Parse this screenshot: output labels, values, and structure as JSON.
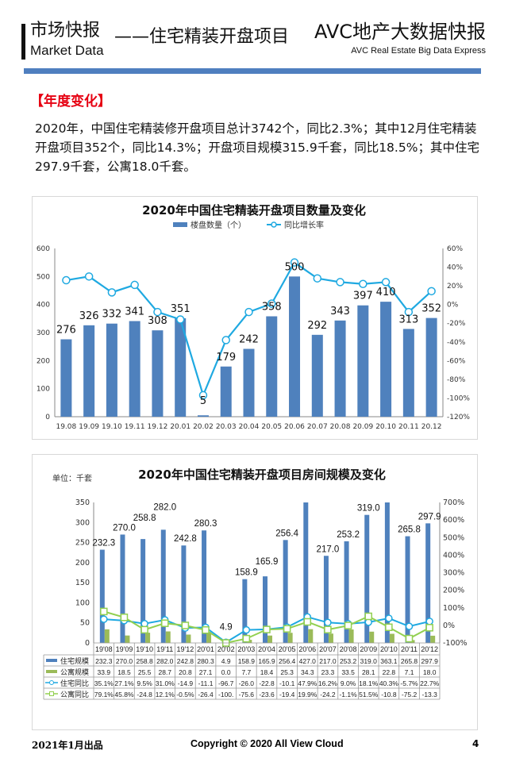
{
  "header": {
    "title_cn": "市场快报",
    "title_en": "Market Data",
    "subtitle": "——住宅精装开盘项目",
    "brand_cn": "AVC地产大数据快报",
    "brand_en": "AVC  Real Estate Big Data Express"
  },
  "section": {
    "title": "【年度变化】",
    "paragraph": "2020年，中国住宅精装修开盘项目总计3742个，同比2.3%；其中12月住宅精装开盘项目352个，同比14.3%；开盘项目规模315.9千套，同比18.5%；其中住宅297.9千套，公寓18.0千套。"
  },
  "colors": {
    "bar_blue": "#4f81bd",
    "bar_green": "#9bbb59",
    "line_cyan": "#1fa9e1",
    "line_green": "#92d050",
    "header_line": "#4f7fbf",
    "section_red": "#e60012"
  },
  "chart_data": [
    {
      "type": "bar+line",
      "title": "2020年中国住宅精装开盘项目数量及变化",
      "categories": [
        "19.08",
        "19.09",
        "19.10",
        "19.11",
        "19.12",
        "20.01",
        "20.02",
        "20.03",
        "20.04",
        "20.05",
        "20.06",
        "20.07",
        "20.08",
        "20.09",
        "20.10",
        "20.11",
        "20.12"
      ],
      "series": [
        {
          "name": "楼盘数量（个）",
          "type": "bar",
          "values": [
            276,
            326,
            332,
            341,
            308,
            351,
            5,
            179,
            242,
            358,
            500,
            292,
            343,
            397,
            410,
            313,
            352
          ]
        },
        {
          "name": "同比增长率",
          "type": "line",
          "axis": "right",
          "values": [
            26,
            30,
            13,
            21,
            -8,
            -16,
            -97,
            -38,
            -8,
            1,
            45,
            28,
            24,
            22,
            24,
            -8,
            14.3
          ]
        }
      ],
      "ylim": [
        0,
        600
      ],
      "yticks": [
        "0",
        "100",
        "200",
        "300",
        "400",
        "500",
        "600"
      ],
      "y2lim": [
        -120,
        60
      ],
      "y2ticks": [
        "-120%",
        "-100%",
        "-80%",
        "-60%",
        "-40%",
        "-20%",
        "0%",
        "20%",
        "40%",
        "60%"
      ],
      "legend": "top"
    },
    {
      "type": "bar+line+table",
      "title": "2020年中国住宅精装开盘项目房间规模及变化",
      "unit": "单位：千套",
      "categories": [
        "19'08",
        "19'09",
        "19'10",
        "19'11",
        "19'12",
        "20'01",
        "20'02",
        "20'03",
        "20'04",
        "20'05",
        "20'06",
        "20'07",
        "20'08",
        "20'09",
        "20'10",
        "20'11",
        "20'12"
      ],
      "series": [
        {
          "name": "住宅规模",
          "type": "bar",
          "values": [
            232.3,
            270.0,
            258.8,
            282.0,
            242.8,
            280.3,
            4.9,
            158.9,
            165.9,
            256.4,
            427.0,
            217.0,
            253.2,
            319.0,
            363.1,
            265.8,
            297.9
          ],
          "labels": [
            "232.3",
            "270.0",
            "258.8",
            "282.0",
            "242.8",
            "280.3",
            "4.9",
            "158.9",
            "165.9",
            "256.4",
            "427.0",
            "217.0",
            "253.2",
            "319.0",
            "363.1",
            "265.8",
            "297.9"
          ]
        },
        {
          "name": "公寓规模",
          "type": "bar",
          "values": [
            33.9,
            18.5,
            25.5,
            28.7,
            20.8,
            27.1,
            0.0,
            7.7,
            18.4,
            25.3,
            34.3,
            23.3,
            33.5,
            28.1,
            22.8,
            7.1,
            18.0
          ],
          "labels": [
            "33.9",
            "18.5",
            "25.5",
            "28.7",
            "20.8",
            "27.1",
            "0.0",
            "7.7",
            "18.4",
            "25.3",
            "34.3",
            "23.3",
            "33.5",
            "28.1",
            "22.8",
            "7.1",
            "18.0"
          ]
        },
        {
          "name": "住宅同比",
          "type": "line",
          "axis": "right",
          "values": [
            35.1,
            27.1,
            9.5,
            31.0,
            -14.9,
            -11.1,
            -96.7,
            -26.0,
            -22.8,
            -10.1,
            47.9,
            16.2,
            9.0,
            18.1,
            40.3,
            -5.7,
            22.7
          ],
          "labels": [
            "35.1%",
            "27.1%",
            "9.5%",
            "31.0%",
            "-14.9",
            "-11.1",
            "-96.7",
            "-26.0",
            "-22.8",
            "-10.1",
            "47.9%",
            "16.2%",
            "9.0%",
            "18.1%",
            "40.3%",
            "-5.7%",
            "22.7%"
          ]
        },
        {
          "name": "公寓同比",
          "type": "line",
          "axis": "right",
          "values": [
            79.1,
            45.8,
            -24.8,
            12.1,
            -0.5,
            -26.4,
            -100,
            -75.6,
            -23.6,
            -19.4,
            19.9,
            -24.2,
            -1.1,
            51.5,
            -10.8,
            -75.2,
            -13.3
          ],
          "labels": [
            "79.1%",
            "45.8%",
            "-24.8",
            "12.1%",
            "-0.5%",
            "-26.4",
            "-100.",
            "-75.6",
            "-23.6",
            "-19.4",
            "19.9%",
            "-24.2",
            "-1.1%",
            "51.5%",
            "-10.8",
            "-75.2",
            "-13.3"
          ]
        }
      ],
      "ylim": [
        0,
        350
      ],
      "yticks": [
        "0",
        "50",
        "100",
        "150",
        "200",
        "250",
        "300",
        "350"
      ],
      "y2lim": [
        -100,
        700
      ],
      "y2ticks": [
        "-100%",
        "0%",
        "100%",
        "200%",
        "300%",
        "400%",
        "500%",
        "600%",
        "700%"
      ],
      "legend": "data-table"
    }
  ],
  "footer": {
    "date": "2021年1月出品",
    "copyright": "Copyright © 2020  All View Cloud",
    "page": "4"
  }
}
